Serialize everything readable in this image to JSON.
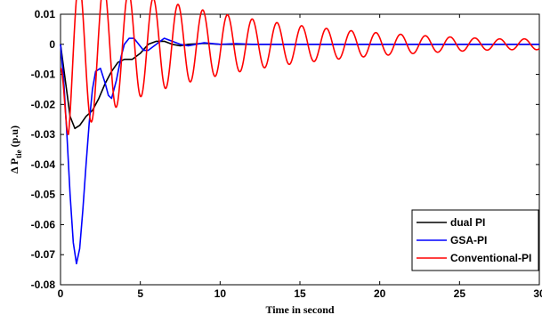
{
  "chart_data": {
    "type": "line",
    "xlabel": "Time in second",
    "ylabel_main": "Δ P",
    "ylabel_sub": "tie",
    "ylabel_unit": " (p.u)",
    "xlim": [
      0,
      30
    ],
    "ylim": [
      -0.08,
      0.01
    ],
    "xticks": [
      0,
      5,
      10,
      15,
      20,
      25,
      30
    ],
    "yticks": [
      0.01,
      0,
      -0.01,
      -0.02,
      -0.03,
      -0.04,
      -0.05,
      -0.06,
      -0.07,
      -0.08
    ],
    "xtick_labels": [
      "0",
      "5",
      "10",
      "15",
      "20",
      "25",
      "30"
    ],
    "ytick_labels": [
      "0.01",
      "0",
      "-0.01",
      "-0.02",
      "-0.03",
      "-0.04",
      "-0.05",
      "-0.06",
      "-0.07",
      "-0.08"
    ],
    "grid": false,
    "legend_position": "bottom-right",
    "series": [
      {
        "name": "dual PI",
        "color": "#000000",
        "x": [
          0,
          0.3,
          0.6,
          0.9,
          1.2,
          1.6,
          2.0,
          2.4,
          2.8,
          3.2,
          3.6,
          4.0,
          4.5,
          5.0,
          5.5,
          6.0,
          6.5,
          7.0,
          7.5,
          8.0,
          9.0,
          10,
          12,
          15,
          20,
          25,
          30
        ],
        "y": [
          0,
          -0.012,
          -0.024,
          -0.028,
          -0.027,
          -0.024,
          -0.022,
          -0.018,
          -0.013,
          -0.009,
          -0.006,
          -0.005,
          -0.005,
          -0.003,
          0.0,
          0.001,
          0.001,
          0.0,
          -0.0005,
          0.0,
          0.0003,
          0.0,
          0.0,
          0.0,
          0.0,
          0.0,
          0.0
        ]
      },
      {
        "name": "GSA-PI",
        "color": "#0000ff",
        "x": [
          0,
          0.2,
          0.4,
          0.6,
          0.8,
          1.0,
          1.2,
          1.4,
          1.6,
          1.8,
          2.0,
          2.2,
          2.5,
          2.8,
          3.0,
          3.2,
          3.5,
          3.8,
          4.0,
          4.3,
          4.6,
          4.9,
          5.2,
          5.5,
          6.0,
          6.5,
          7.0,
          7.5,
          8.0,
          8.5,
          9.0,
          10,
          11,
          12,
          14,
          16,
          20,
          25,
          30
        ],
        "y": [
          0,
          -0.012,
          -0.03,
          -0.05,
          -0.066,
          -0.073,
          -0.068,
          -0.055,
          -0.04,
          -0.026,
          -0.015,
          -0.009,
          -0.008,
          -0.013,
          -0.017,
          -0.018,
          -0.012,
          -0.004,
          0.0,
          0.002,
          0.002,
          0.0,
          -0.002,
          -0.002,
          0.0,
          0.002,
          0.001,
          0.0,
          -0.0005,
          0.0,
          0.0005,
          0.0,
          0.0002,
          0.0,
          0.0,
          0.0,
          0.0,
          0.0,
          0.0
        ]
      },
      {
        "name": "Conventional-PI",
        "color": "#ff0000",
        "damping": 0.085,
        "period": 1.55,
        "decay_per_second": 0.1,
        "amplitude": 0.028,
        "offset": -0.008,
        "offset_decay_per_second": 0.55,
        "tail_amplitude": 0.0018
      }
    ]
  }
}
